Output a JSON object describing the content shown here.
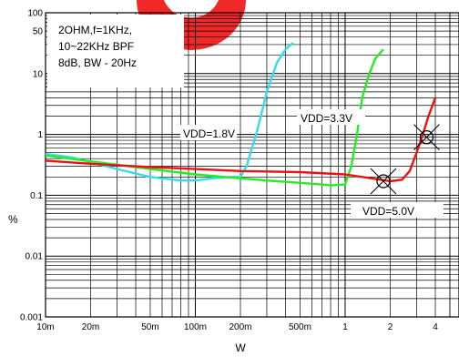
{
  "chart_data": {
    "type": "line",
    "title": "",
    "xlabel": "W",
    "ylabel": "%",
    "xscale": "log",
    "yscale": "log",
    "xlim": [
      0.01,
      4
    ],
    "ylim": [
      0.001,
      100
    ],
    "x_ticks": [
      {
        "value": 0.01,
        "label": "10m"
      },
      {
        "value": 0.02,
        "label": "20m"
      },
      {
        "value": 0.05,
        "label": "50m"
      },
      {
        "value": 0.1,
        "label": "100m"
      },
      {
        "value": 0.2,
        "label": "200m"
      },
      {
        "value": 0.5,
        "label": "500m"
      },
      {
        "value": 1,
        "label": "1"
      },
      {
        "value": 2,
        "label": "2"
      },
      {
        "value": 4,
        "label": "4"
      }
    ],
    "y_ticks": [
      {
        "value": 0.001,
        "label": "0.001"
      },
      {
        "value": 0.01,
        "label": "0.01"
      },
      {
        "value": 0.1,
        "label": "0.1"
      },
      {
        "value": 1,
        "label": "1"
      },
      {
        "value": 10,
        "label": "10"
      },
      {
        "value": 50,
        "label": "50"
      },
      {
        "value": 100,
        "label": "100"
      }
    ],
    "grid": true,
    "condition_lines": [
      "2OHM,f=1KHz,",
      "10~22KHz BPF",
      "8dB, BW - 20Hz"
    ],
    "series": [
      {
        "name": "VDD=1.8V",
        "color": "#33ddee",
        "points": [
          [
            0.01,
            0.48
          ],
          [
            0.015,
            0.42
          ],
          [
            0.02,
            0.35
          ],
          [
            0.03,
            0.27
          ],
          [
            0.05,
            0.2
          ],
          [
            0.08,
            0.175
          ],
          [
            0.1,
            0.175
          ],
          [
            0.13,
            0.19
          ],
          [
            0.17,
            0.2
          ],
          [
            0.2,
            0.2
          ],
          [
            0.22,
            0.3
          ],
          [
            0.26,
            1.2
          ],
          [
            0.3,
            5
          ],
          [
            0.35,
            15
          ],
          [
            0.4,
            25
          ],
          [
            0.45,
            32
          ]
        ]
      },
      {
        "name": "VDD=3.3V",
        "color": "#22ee22",
        "points": [
          [
            0.01,
            0.45
          ],
          [
            0.02,
            0.36
          ],
          [
            0.05,
            0.27
          ],
          [
            0.1,
            0.22
          ],
          [
            0.2,
            0.19
          ],
          [
            0.3,
            0.175
          ],
          [
            0.5,
            0.16
          ],
          [
            0.7,
            0.15
          ],
          [
            0.8,
            0.145
          ],
          [
            1,
            0.15
          ],
          [
            1.1,
            0.3
          ],
          [
            1.2,
            1
          ],
          [
            1.3,
            4
          ],
          [
            1.45,
            10
          ],
          [
            1.6,
            18
          ],
          [
            1.8,
            25
          ]
        ]
      },
      {
        "name": "VDD=5.0V",
        "color": "#ee1111",
        "points": [
          [
            0.01,
            0.37
          ],
          [
            0.02,
            0.33
          ],
          [
            0.05,
            0.29
          ],
          [
            0.1,
            0.27
          ],
          [
            0.2,
            0.25
          ],
          [
            0.5,
            0.24
          ],
          [
            1,
            0.22
          ],
          [
            1.5,
            0.19
          ],
          [
            2,
            0.17
          ],
          [
            2.4,
            0.18
          ],
          [
            2.7,
            0.25
          ],
          [
            3,
            0.5
          ],
          [
            3.3,
            1
          ],
          [
            3.6,
            2
          ],
          [
            4,
            4
          ]
        ]
      }
    ],
    "annotations": [
      {
        "text": "VDD=1.8V",
        "series": "VDD=1.8V"
      },
      {
        "text": "VDD=3.3V",
        "series": "VDD=3.3V"
      },
      {
        "text": "VDD=5.0V",
        "series": "VDD=5.0V"
      }
    ],
    "markers": [
      {
        "type": "crossed-circle",
        "x": 1.8,
        "y": 0.17
      },
      {
        "type": "crossed-circle",
        "x": 3.5,
        "y": 0.9
      }
    ]
  }
}
